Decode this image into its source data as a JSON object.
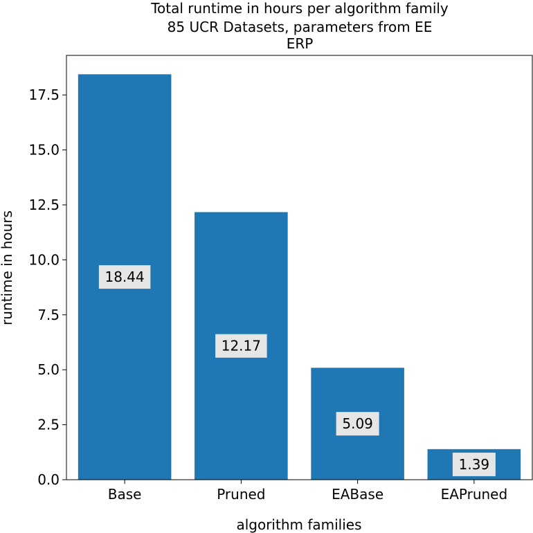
{
  "chart_data": {
    "type": "bar",
    "title": [
      "Total runtime in hours per algorithm family",
      "85 UCR Datasets, parameters from EE",
      "ERP"
    ],
    "xlabel": "algorithm families",
    "ylabel": "runtime in hours",
    "categories": [
      "Base",
      "Pruned",
      "EABase",
      "EAPruned"
    ],
    "values": [
      18.44,
      12.17,
      5.09,
      1.39
    ],
    "data_labels": [
      "18.44",
      "12.17",
      "5.09",
      "1.39"
    ],
    "yticks": [
      0.0,
      2.5,
      5.0,
      7.5,
      10.0,
      12.5,
      15.0,
      17.5
    ],
    "ytick_labels": [
      "0.0",
      "2.5",
      "5.0",
      "7.5",
      "10.0",
      "12.5",
      "15.0",
      "17.5"
    ],
    "ylim": [
      0,
      19.3
    ],
    "bar_color": "#1f77b4",
    "label_box_color": "#e6e6e6",
    "grid": false
  }
}
